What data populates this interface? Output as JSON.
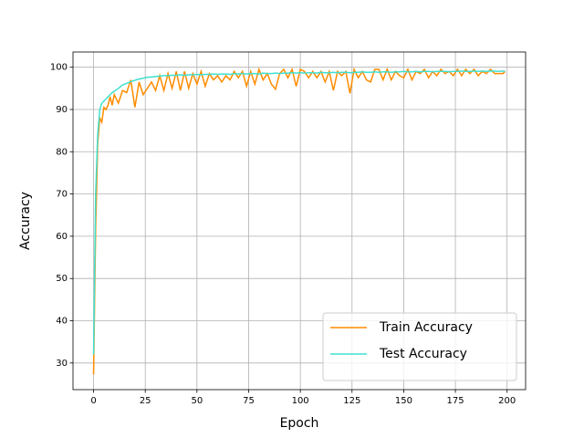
{
  "chart_data": {
    "type": "line",
    "x_label": "Epoch",
    "y_label": "Accuracy",
    "x": [
      0,
      1,
      2,
      3,
      4,
      5,
      6,
      7,
      8,
      9,
      10,
      12,
      14,
      16,
      18,
      20,
      22,
      24,
      26,
      28,
      30,
      32,
      34,
      36,
      38,
      40,
      42,
      44,
      46,
      48,
      50,
      52,
      54,
      56,
      58,
      60,
      62,
      64,
      66,
      68,
      70,
      72,
      74,
      76,
      78,
      80,
      82,
      84,
      86,
      88,
      90,
      92,
      94,
      96,
      98,
      100,
      102,
      104,
      106,
      108,
      110,
      112,
      114,
      116,
      118,
      120,
      122,
      124,
      126,
      128,
      130,
      132,
      134,
      136,
      138,
      140,
      142,
      144,
      146,
      148,
      150,
      152,
      154,
      156,
      158,
      160,
      162,
      164,
      166,
      168,
      170,
      172,
      174,
      176,
      178,
      180,
      182,
      184,
      186,
      188,
      190,
      192,
      194,
      196,
      198,
      199
    ],
    "series": [
      {
        "name": "Train Accuracy",
        "color": "#ff8c00",
        "values": [
          27.3,
          62,
          82,
          88,
          87,
          90.5,
          90,
          91,
          93,
          91,
          93.5,
          91.5,
          94.5,
          94,
          97,
          90.5,
          96.5,
          93.5,
          95,
          96.5,
          94.5,
          98,
          94.5,
          98.5,
          95,
          99,
          94.5,
          99,
          95,
          98.5,
          96,
          99,
          95.5,
          98.5,
          97,
          98,
          96.5,
          98,
          97,
          99,
          97.5,
          99,
          95.5,
          99,
          96,
          99.5,
          97,
          98.5,
          96,
          94.8,
          98.5,
          99.5,
          97.5,
          99.5,
          95.5,
          99.5,
          99,
          97.5,
          99,
          97.5,
          99,
          96.5,
          99,
          94.5,
          99,
          98,
          99,
          93.8,
          99.5,
          97.5,
          99,
          97,
          96.5,
          99.5,
          99.5,
          97,
          99.5,
          97,
          99,
          98,
          97.5,
          99.5,
          97,
          99,
          98.5,
          99.5,
          97.5,
          99,
          98,
          99.5,
          98.5,
          99,
          98,
          99.5,
          98,
          99.5,
          98.5,
          99.5,
          98,
          99,
          98.5,
          99.5,
          98.5,
          98.5,
          98.5,
          99
        ]
      },
      {
        "name": "Test Accuracy",
        "color": "#40e0d0",
        "values": [
          32,
          70,
          84,
          90,
          91.5,
          92,
          92.5,
          93,
          93.5,
          94,
          94.3,
          95,
          95.8,
          96.2,
          96.6,
          96.9,
          97.2,
          97.4,
          97.6,
          97.7,
          97.8,
          97.9,
          98,
          98,
          98.1,
          98.1,
          98.2,
          98.1,
          98.2,
          98.2,
          98.3,
          98.2,
          98.3,
          98.3,
          98.4,
          98.3,
          98.4,
          98.4,
          98.3,
          98.5,
          98.4,
          98.5,
          98.4,
          98.5,
          98.5,
          98.4,
          98.6,
          98.5,
          98.5,
          98.6,
          98.5,
          98.6,
          98.6,
          98.7,
          98.6,
          98.7,
          98.6,
          98.7,
          98.7,
          98.6,
          98.8,
          98.7,
          98.7,
          98.8,
          98.7,
          98.8,
          98.8,
          98.7,
          98.8,
          98.8,
          98.9,
          98.8,
          98.8,
          98.9,
          98.8,
          98.9,
          98.9,
          98.8,
          98.9,
          98.9,
          99,
          98.9,
          98.9,
          99,
          98.9,
          99,
          99,
          98.9,
          99,
          99,
          99,
          98.9,
          99,
          99,
          99.1,
          99,
          99,
          99.1,
          99,
          99.1,
          99,
          99.1,
          99.1,
          99,
          99.1,
          99.1
        ]
      }
    ],
    "xlim": [
      -9.95,
      208.95
    ],
    "ylim": [
      23.7,
      103.6
    ],
    "xticks": [
      0,
      25,
      50,
      75,
      100,
      125,
      150,
      175,
      200
    ],
    "yticks": [
      30,
      40,
      50,
      60,
      70,
      80,
      90,
      100
    ],
    "grid": true,
    "legend": "lower right"
  }
}
